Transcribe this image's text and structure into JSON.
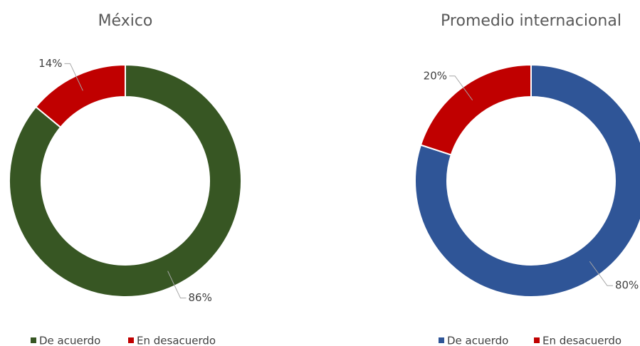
{
  "chart_data": [
    {
      "type": "donut",
      "title": "México",
      "categories": [
        "De acuerdo",
        "En desacuerdo"
      ],
      "values": [
        86,
        14
      ],
      "value_labels": [
        "86%",
        "14%"
      ],
      "colors": [
        "#375623",
        "#c00000"
      ]
    },
    {
      "type": "donut",
      "title": "Promedio internacional",
      "categories": [
        "De acuerdo",
        "En desacuerdo"
      ],
      "values": [
        80,
        20
      ],
      "value_labels": [
        "80%",
        "20%"
      ],
      "colors": [
        "#2f5597",
        "#c00000"
      ]
    }
  ]
}
